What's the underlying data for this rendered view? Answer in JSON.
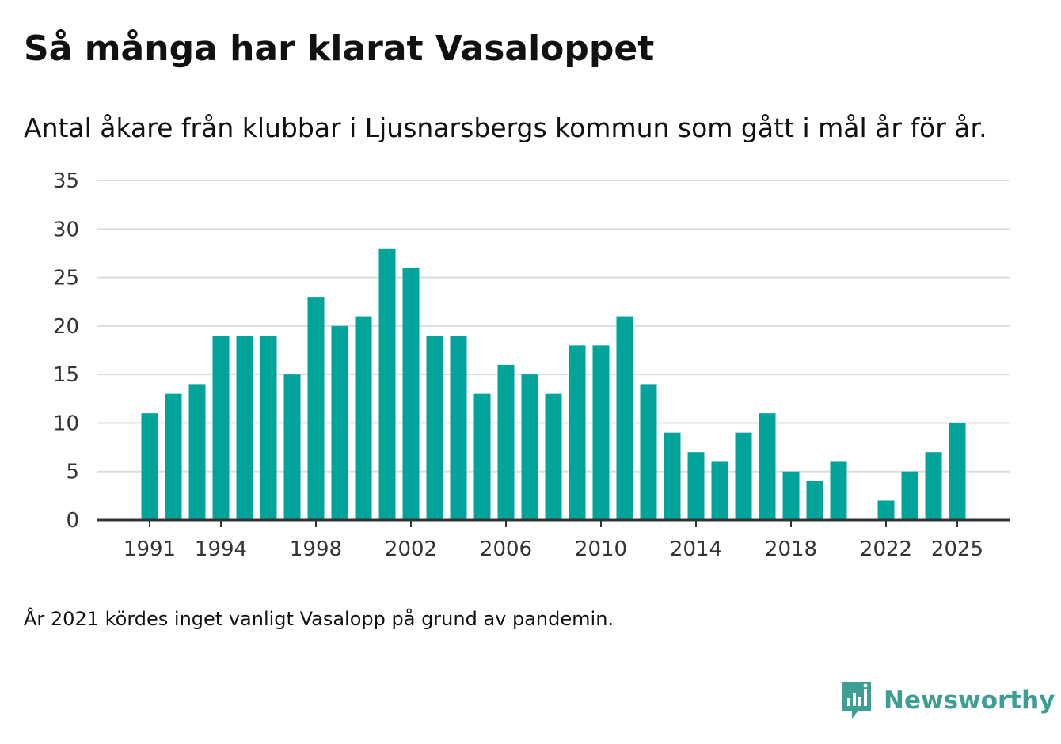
{
  "title": "Så många har klarat Vasaloppet",
  "subtitle": "Antal åkare från klubbar i Ljusnarsbergs kommun som gått i mål år för år.",
  "footnote": "År 2021 kördes inget vanligt Vasalopp på grund av pandemin.",
  "brand": {
    "name": "Newsworthy",
    "icon": "newsworthy-logo-icon"
  },
  "colors": {
    "bar": "#00a49a",
    "grid": "#dddddd",
    "axis": "#333333",
    "brand": "#3f9e93"
  },
  "chart_data": {
    "type": "bar",
    "title": "Så många har klarat Vasaloppet",
    "xlabel": "",
    "ylabel": "",
    "ylim": [
      0,
      35
    ],
    "yticks": [
      0,
      5,
      10,
      15,
      20,
      25,
      30,
      35
    ],
    "xtick_labels": [
      "1991",
      "1994",
      "1998",
      "2002",
      "2006",
      "2010",
      "2014",
      "2018",
      "2022",
      "2025"
    ],
    "grid": true,
    "categories": [
      1991,
      1992,
      1993,
      1994,
      1995,
      1996,
      1997,
      1998,
      1999,
      2000,
      2001,
      2002,
      2003,
      2004,
      2005,
      2006,
      2007,
      2008,
      2009,
      2010,
      2011,
      2012,
      2013,
      2014,
      2015,
      2016,
      2017,
      2018,
      2019,
      2020,
      2021,
      2022,
      2023,
      2024,
      2025
    ],
    "values": [
      11,
      13,
      14,
      19,
      19,
      19,
      15,
      23,
      20,
      21,
      28,
      26,
      19,
      19,
      13,
      16,
      15,
      13,
      18,
      18,
      21,
      14,
      9,
      7,
      6,
      9,
      11,
      5,
      4,
      6,
      null,
      2,
      5,
      7,
      10
    ]
  }
}
